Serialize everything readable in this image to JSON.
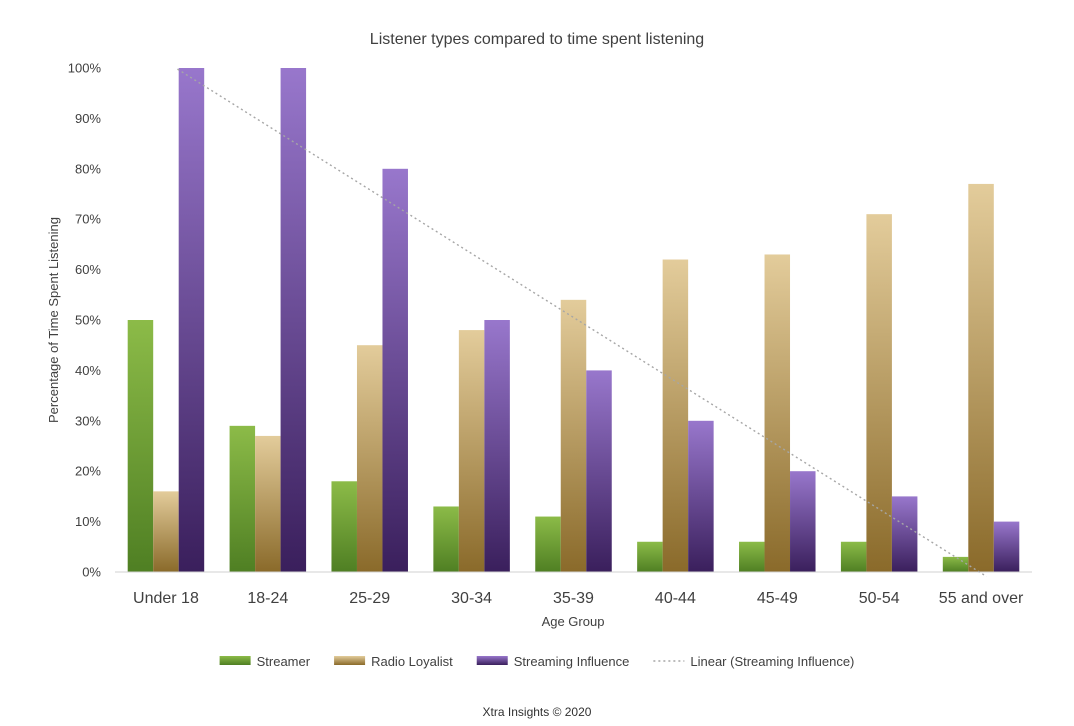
{
  "chart_data": {
    "type": "bar",
    "title": "Listener types compared to time spent listening",
    "xlabel": "Age Group",
    "ylabel": "Percentage of Time Spent Listening",
    "ylim": [
      0,
      100
    ],
    "yticks": [
      "0%",
      "10%",
      "20%",
      "30%",
      "40%",
      "50%",
      "60%",
      "70%",
      "80%",
      "90%",
      "100%"
    ],
    "grid": false,
    "categories": [
      "Under 18",
      "18-24",
      "25-29",
      "30-34",
      "35-39",
      "40-44",
      "45-49",
      "50-54",
      "55 and over"
    ],
    "series": [
      {
        "name": "Streamer",
        "values": [
          50,
          29,
          18,
          13,
          11,
          6,
          6,
          6,
          3
        ],
        "color": "#7aa63a"
      },
      {
        "name": "Radio Loyalist",
        "values": [
          16,
          27,
          45,
          48,
          54,
          62,
          63,
          71,
          77
        ],
        "color": "#c9a96a"
      },
      {
        "name": "Streaming Influence",
        "values": [
          100,
          100,
          80,
          50,
          40,
          30,
          20,
          15,
          10
        ],
        "color": "#7a55a8"
      }
    ],
    "trendline": {
      "name": "Linear (Streaming Influence)",
      "series": "Streaming Influence",
      "type": "linear",
      "color": "#a6a6a6"
    },
    "legend_position": "bottom"
  },
  "footer": "Xtra Insights © 2020"
}
